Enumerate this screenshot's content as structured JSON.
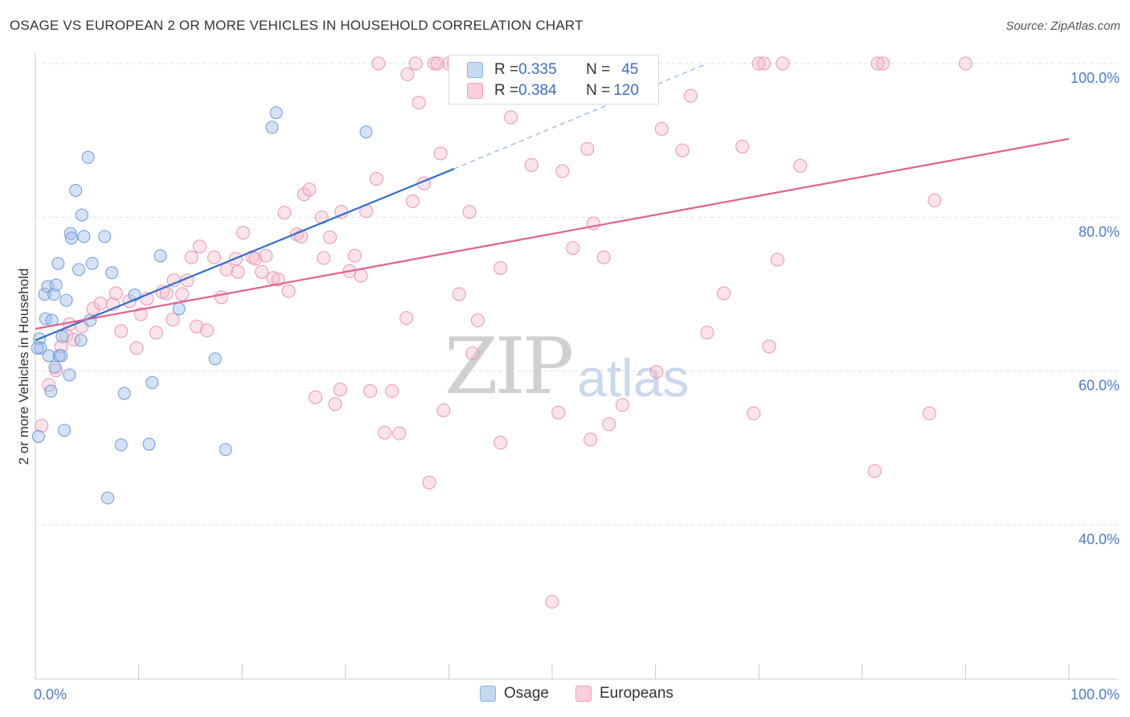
{
  "header": {
    "title": "OSAGE VS EUROPEAN 2 OR MORE VEHICLES IN HOUSEHOLD CORRELATION CHART",
    "source": "Source: ZipAtlas.com"
  },
  "watermark": {
    "zip": "ZIP",
    "atlas": "atlas"
  },
  "legend_top": {
    "rows": [
      {
        "r_label": "R = ",
        "r_value": "0.335",
        "n_label": "N = ",
        "n_value": "45",
        "color": "#a9c6ee"
      },
      {
        "r_label": "R = ",
        "r_value": "0.384",
        "n_label": "N = ",
        "n_value": "120",
        "color": "#f6b8cb"
      }
    ]
  },
  "legend_bottom": {
    "items": [
      {
        "label": "Osage",
        "color": "#a9c6ee"
      },
      {
        "label": "Europeans",
        "color": "#f6b8cb"
      }
    ]
  },
  "colors": {
    "osage_fill": "rgba(160,190,235,0.45)",
    "osage_stroke": "#6f9ad8",
    "osage_line": "#2f6fcd",
    "euro_fill": "rgba(246,184,203,0.40)",
    "euro_stroke": "#e896b1",
    "euro_line": "#e0628e",
    "grid": "#dddddd",
    "tick_text": "#4a7cc9"
  },
  "chart_data": {
    "type": "scatter",
    "title": "OSAGE VS EUROPEAN 2 OR MORE VEHICLES IN HOUSEHOLD CORRELATION CHART",
    "xlabel": "",
    "ylabel": "2 or more Vehicles in Household",
    "xlim": [
      0,
      100
    ],
    "ylim": [
      20,
      102
    ],
    "x_tick_labels": [
      "0.0%",
      "100.0%"
    ],
    "y_ticks": [
      40,
      60,
      80,
      100
    ],
    "y_tick_labels": [
      "40.0%",
      "60.0%",
      "80.0%",
      "100.0%"
    ],
    "grid": true,
    "legend_position": "top-center",
    "series": [
      {
        "name": "Osage",
        "points": [
          [
            0.4,
            64.2
          ],
          [
            0.5,
            63.0
          ],
          [
            0.3,
            51.5
          ],
          [
            0.9,
            70.0
          ],
          [
            1.0,
            66.8
          ],
          [
            1.2,
            71.0
          ],
          [
            1.3,
            62.0
          ],
          [
            1.5,
            57.4
          ],
          [
            1.6,
            66.6
          ],
          [
            1.8,
            70.0
          ],
          [
            1.9,
            60.5
          ],
          [
            2.0,
            71.2
          ],
          [
            2.2,
            74.0
          ],
          [
            2.3,
            62.0
          ],
          [
            2.5,
            62.0
          ],
          [
            2.6,
            64.5
          ],
          [
            2.8,
            52.3
          ],
          [
            3.0,
            69.2
          ],
          [
            3.3,
            59.5
          ],
          [
            3.4,
            77.9
          ],
          [
            3.5,
            77.3
          ],
          [
            3.9,
            83.5
          ],
          [
            4.2,
            73.2
          ],
          [
            4.4,
            64.0
          ],
          [
            4.5,
            80.3
          ],
          [
            4.7,
            77.5
          ],
          [
            5.1,
            87.8
          ],
          [
            5.3,
            66.6
          ],
          [
            5.5,
            74.0
          ],
          [
            6.7,
            77.5
          ],
          [
            7.0,
            43.5
          ],
          [
            7.4,
            72.8
          ],
          [
            8.3,
            50.4
          ],
          [
            8.6,
            57.1
          ],
          [
            9.6,
            69.9
          ],
          [
            11.0,
            50.5
          ],
          [
            11.3,
            58.5
          ],
          [
            12.1,
            75.0
          ],
          [
            13.9,
            68.1
          ],
          [
            17.4,
            61.6
          ],
          [
            18.4,
            49.8
          ],
          [
            22.9,
            91.7
          ],
          [
            23.3,
            93.6
          ],
          [
            32.0,
            91.1
          ],
          [
            0.2,
            63.0
          ]
        ]
      },
      {
        "name": "Europeans",
        "points": [
          [
            0.6,
            52.9
          ],
          [
            1.3,
            58.2
          ],
          [
            2.0,
            60.1
          ],
          [
            2.5,
            63.2
          ],
          [
            3.0,
            64.6
          ],
          [
            3.3,
            66.1
          ],
          [
            3.7,
            64.1
          ],
          [
            4.5,
            65.8
          ],
          [
            5.6,
            68.1
          ],
          [
            6.3,
            68.8
          ],
          [
            7.5,
            68.7
          ],
          [
            7.8,
            70.1
          ],
          [
            8.3,
            65.2
          ],
          [
            9.1,
            69.1
          ],
          [
            9.8,
            63.0
          ],
          [
            10.2,
            67.4
          ],
          [
            10.8,
            69.4
          ],
          [
            11.7,
            65.0
          ],
          [
            12.3,
            70.3
          ],
          [
            12.7,
            70.1
          ],
          [
            13.3,
            66.7
          ],
          [
            13.4,
            71.8
          ],
          [
            14.2,
            70.0
          ],
          [
            14.7,
            71.8
          ],
          [
            15.1,
            74.8
          ],
          [
            15.6,
            65.8
          ],
          [
            15.9,
            76.2
          ],
          [
            16.6,
            65.3
          ],
          [
            17.3,
            74.8
          ],
          [
            18.0,
            69.6
          ],
          [
            18.5,
            73.2
          ],
          [
            19.4,
            74.6
          ],
          [
            19.6,
            72.9
          ],
          [
            20.1,
            78.0
          ],
          [
            21.0,
            74.8
          ],
          [
            21.3,
            74.6
          ],
          [
            21.9,
            72.9
          ],
          [
            22.3,
            75.0
          ],
          [
            23.0,
            72.1
          ],
          [
            23.5,
            71.9
          ],
          [
            24.1,
            80.6
          ],
          [
            24.5,
            70.4
          ],
          [
            25.3,
            77.8
          ],
          [
            25.7,
            77.5
          ],
          [
            26.0,
            83.0
          ],
          [
            26.5,
            83.6
          ],
          [
            27.1,
            56.6
          ],
          [
            27.7,
            80.0
          ],
          [
            27.9,
            74.7
          ],
          [
            28.5,
            77.4
          ],
          [
            29.0,
            55.7
          ],
          [
            29.5,
            57.6
          ],
          [
            29.6,
            80.7
          ],
          [
            30.4,
            73.0
          ],
          [
            30.9,
            75.0
          ],
          [
            31.5,
            72.4
          ],
          [
            32.0,
            80.8
          ],
          [
            32.4,
            57.4
          ],
          [
            33.0,
            85.0
          ],
          [
            33.8,
            52.0
          ],
          [
            35.2,
            51.9
          ],
          [
            35.9,
            66.9
          ],
          [
            36.0,
            98.6
          ],
          [
            36.5,
            82.1
          ],
          [
            37.1,
            94.9
          ],
          [
            37.6,
            84.4
          ],
          [
            38.1,
            45.5
          ],
          [
            38.6,
            100.0
          ],
          [
            39.2,
            88.3
          ],
          [
            39.5,
            54.9
          ],
          [
            40.0,
            100.0
          ],
          [
            41.0,
            70.0
          ],
          [
            41.5,
            100.0
          ],
          [
            42.0,
            80.7
          ],
          [
            42.3,
            62.3
          ],
          [
            42.8,
            66.6
          ],
          [
            44.0,
            100.0
          ],
          [
            45.0,
            73.4
          ],
          [
            45.0,
            50.7
          ],
          [
            48.0,
            86.8
          ],
          [
            50.6,
            54.6
          ],
          [
            51.0,
            86.0
          ],
          [
            52.0,
            76.0
          ],
          [
            53.4,
            88.9
          ],
          [
            53.7,
            51.1
          ],
          [
            54.0,
            79.2
          ],
          [
            55.0,
            74.8
          ],
          [
            55.5,
            53.1
          ],
          [
            56.8,
            55.6
          ],
          [
            58.0,
            96.5
          ],
          [
            60.1,
            59.9
          ],
          [
            60.6,
            91.5
          ],
          [
            62.6,
            88.7
          ],
          [
            63.4,
            95.8
          ],
          [
            66.6,
            70.1
          ],
          [
            68.4,
            89.2
          ],
          [
            69.5,
            54.5
          ],
          [
            70.0,
            100.0
          ],
          [
            70.5,
            100.0
          ],
          [
            71.0,
            63.2
          ],
          [
            71.8,
            74.5
          ],
          [
            72.3,
            100.0
          ],
          [
            74.0,
            86.7
          ],
          [
            81.5,
            100.0
          ],
          [
            82.0,
            100.0
          ],
          [
            81.2,
            47.0
          ],
          [
            87.0,
            82.2
          ],
          [
            86.5,
            54.5
          ],
          [
            90.0,
            100.0
          ],
          [
            50.0,
            30.0
          ],
          [
            33.2,
            100.0
          ],
          [
            65.0,
            65.0
          ],
          [
            34.5,
            57.4
          ],
          [
            38.9,
            100.0
          ],
          [
            40.5,
            100.0
          ],
          [
            36.8,
            100.0
          ],
          [
            52.5,
            100.0
          ],
          [
            55.8,
            100.0
          ],
          [
            46.0,
            93.0
          ],
          [
            48.5,
            100.0
          ],
          [
            43.5,
            100.0
          ]
        ]
      }
    ],
    "trendlines": [
      {
        "series": "Osage",
        "from": [
          0,
          64.0
        ],
        "to": [
          40.5,
          86.3
        ],
        "extended_to": [
          65,
          100.0
        ]
      },
      {
        "series": "Europeans",
        "from": [
          0,
          65.5
        ],
        "to": [
          100,
          90.2
        ]
      }
    ]
  }
}
